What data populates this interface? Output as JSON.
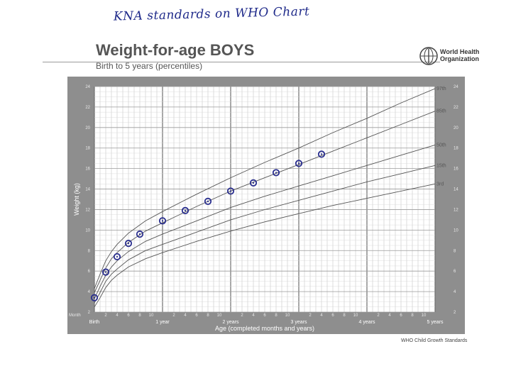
{
  "annotation": {
    "handwritten_note": "KNA standards on WHO Chart"
  },
  "header": {
    "title": "Weight-for-age BOYS",
    "subtitle": "Birth to 5 years (percentiles)",
    "org_name_line1": "World Health",
    "org_name_line2": "Organization"
  },
  "footer": {
    "credit": "WHO Child Growth Standards"
  },
  "colors": {
    "frame": "#8e8e8e",
    "plot_bg": "#ffffff",
    "grid": "#bdbdbd",
    "curves": "#555555",
    "markers": "#2a2f8f"
  },
  "chart_data": {
    "type": "line",
    "title": "Weight-for-age BOYS",
    "subtitle": "Birth to 5 years (percentiles)",
    "xlabel": "Age (completed months and years)",
    "ylabel": "Weight (kg)",
    "xlim": [
      0,
      60
    ],
    "ylim": [
      2,
      24
    ],
    "y_ticks": [
      2,
      4,
      6,
      8,
      10,
      12,
      14,
      16,
      18,
      20,
      22,
      24
    ],
    "x_month_label": "Month",
    "x_tick_months": [
      {
        "m": 2,
        "label": "2"
      },
      {
        "m": 4,
        "label": "4"
      },
      {
        "m": 6,
        "label": "6"
      },
      {
        "m": 8,
        "label": "8"
      },
      {
        "m": 10,
        "label": "10"
      },
      {
        "m": 14,
        "label": "2"
      },
      {
        "m": 16,
        "label": "4"
      },
      {
        "m": 18,
        "label": "6"
      },
      {
        "m": 20,
        "label": "8"
      },
      {
        "m": 22,
        "label": "10"
      },
      {
        "m": 26,
        "label": "2"
      },
      {
        "m": 28,
        "label": "4"
      },
      {
        "m": 30,
        "label": "6"
      },
      {
        "m": 32,
        "label": "8"
      },
      {
        "m": 34,
        "label": "10"
      },
      {
        "m": 38,
        "label": "2"
      },
      {
        "m": 40,
        "label": "4"
      },
      {
        "m": 42,
        "label": "6"
      },
      {
        "m": 44,
        "label": "8"
      },
      {
        "m": 46,
        "label": "10"
      },
      {
        "m": 50,
        "label": "2"
      },
      {
        "m": 52,
        "label": "4"
      },
      {
        "m": 54,
        "label": "6"
      },
      {
        "m": 56,
        "label": "8"
      },
      {
        "m": 58,
        "label": "10"
      }
    ],
    "x_milestones": [
      {
        "m": 0,
        "label": "Birth"
      },
      {
        "m": 12,
        "label": "1 year"
      },
      {
        "m": 24,
        "label": "2 years"
      },
      {
        "m": 36,
        "label": "3 years"
      },
      {
        "m": 48,
        "label": "4 years"
      },
      {
        "m": 60,
        "label": "5 years"
      }
    ],
    "x": [
      0,
      1,
      2,
      3,
      4,
      6,
      9,
      12,
      18,
      24,
      30,
      36,
      42,
      48,
      54,
      60
    ],
    "series": [
      {
        "name": "97th",
        "values": [
          4.3,
          5.7,
          7.0,
          7.9,
          8.6,
          9.7,
          10.9,
          11.8,
          13.5,
          15.1,
          16.6,
          18.0,
          19.5,
          20.9,
          22.4,
          23.8
        ]
      },
      {
        "name": "85th",
        "values": [
          3.9,
          5.1,
          6.3,
          7.2,
          7.8,
          8.8,
          9.9,
          10.7,
          12.3,
          13.8,
          15.1,
          16.4,
          17.7,
          19.0,
          20.3,
          21.6
        ]
      },
      {
        "name": "50th",
        "values": [
          3.3,
          4.5,
          5.6,
          6.4,
          7.0,
          7.9,
          8.9,
          9.6,
          10.9,
          12.2,
          13.3,
          14.3,
          15.3,
          16.3,
          17.3,
          18.3
        ]
      },
      {
        "name": "15th",
        "values": [
          2.9,
          3.9,
          5.0,
          5.7,
          6.2,
          7.1,
          8.0,
          8.6,
          9.8,
          11.0,
          12.0,
          12.9,
          13.8,
          14.7,
          15.5,
          16.3
        ]
      },
      {
        "name": "3rd",
        "values": [
          2.5,
          3.4,
          4.4,
          5.1,
          5.6,
          6.4,
          7.2,
          7.8,
          8.9,
          9.9,
          10.8,
          11.6,
          12.4,
          13.1,
          13.8,
          14.5
        ]
      }
    ],
    "marked_points": [
      {
        "x": 0,
        "y": 3.4
      },
      {
        "x": 2,
        "y": 5.9
      },
      {
        "x": 4,
        "y": 7.4
      },
      {
        "x": 6,
        "y": 8.7
      },
      {
        "x": 8,
        "y": 9.6
      },
      {
        "x": 12,
        "y": 10.9
      },
      {
        "x": 16,
        "y": 11.9
      },
      {
        "x": 20,
        "y": 12.8
      },
      {
        "x": 24,
        "y": 13.8
      },
      {
        "x": 28,
        "y": 14.6
      },
      {
        "x": 32,
        "y": 15.6
      },
      {
        "x": 36,
        "y": 16.5
      },
      {
        "x": 40,
        "y": 17.4
      }
    ],
    "grid": true
  }
}
